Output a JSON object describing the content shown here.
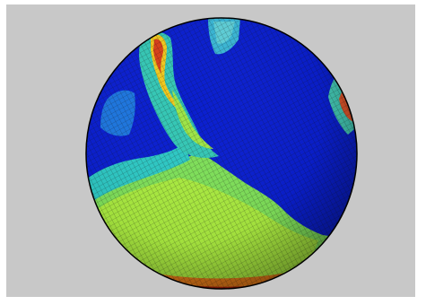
{
  "scene": {
    "subject": "sphere-mesh-visualization",
    "background_color": "#c8c8c8",
    "colormap": [
      "#0a1fd0",
      "#1b5ce0",
      "#27b7d8",
      "#5de07a",
      "#b8ef38",
      "#f0d21e",
      "#e05a12",
      "#9a1a0a"
    ],
    "mesh_line_color": "#1a1a1a",
    "outline_color": "#000000"
  }
}
